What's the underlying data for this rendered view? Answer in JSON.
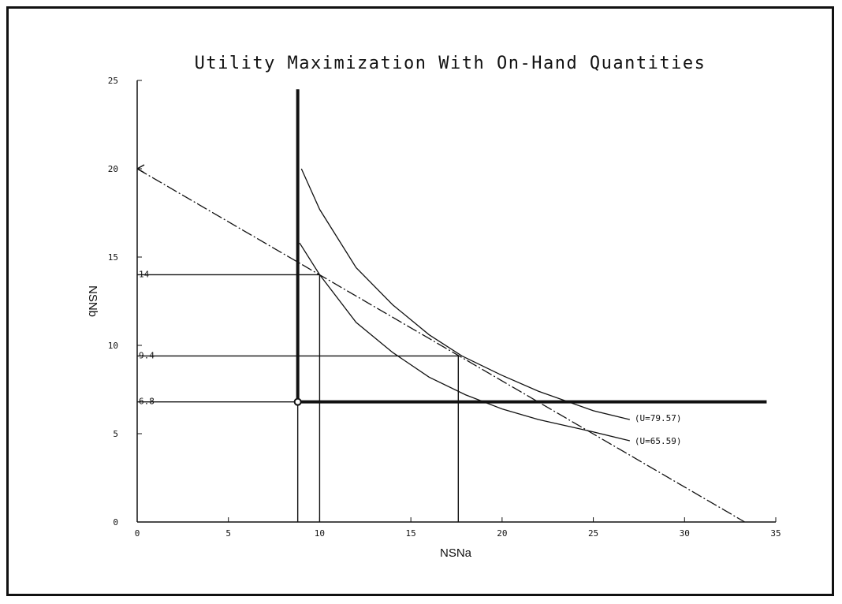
{
  "chart_data": {
    "type": "line",
    "title": "Utility Maximization With On-Hand Quantities",
    "xlabel": "NSNa",
    "ylabel": "NSNb",
    "xlim": [
      0,
      35
    ],
    "ylim": [
      0,
      25
    ],
    "xticks": [
      0,
      5,
      10,
      15,
      20,
      25,
      30,
      35
    ],
    "yticks": [
      0,
      5,
      10,
      15,
      20,
      25
    ],
    "grid": false,
    "colors": {
      "line": "#111111",
      "background": "#ffffff"
    },
    "series": [
      {
        "name": "budget-line",
        "style": "dash-dot",
        "x": [
          0,
          33.3
        ],
        "y": [
          20,
          0
        ]
      },
      {
        "name": "",
        "label": "(U=79.57)",
        "style": "solid",
        "x": [
          9.0,
          10.0,
          12.0,
          14.0,
          16.0,
          17.8,
          20.0,
          22.0,
          25.0,
          27.0
        ],
        "y": [
          20.0,
          17.7,
          14.4,
          12.3,
          10.6,
          9.4,
          8.3,
          7.4,
          6.3,
          5.8
        ]
      },
      {
        "name": "",
        "label": "(U=65.59)",
        "style": "solid",
        "x": [
          8.9,
          10.0,
          12.0,
          14.0,
          16.0,
          18.0,
          20.0,
          22.0,
          25.0,
          27.0
        ],
        "y": [
          15.8,
          14.0,
          11.3,
          9.6,
          8.2,
          7.2,
          6.4,
          5.8,
          5.1,
          4.6
        ]
      }
    ],
    "constraints": {
      "vertical_x": 8.8,
      "vertical_top_y": 24.5,
      "horizontal_y": 6.8,
      "horizontal_right_x": 34.5
    },
    "reference_lines": [
      {
        "x": 10.0,
        "y": 14.0,
        "label": "14"
      },
      {
        "x": 17.6,
        "y": 9.4,
        "label": "9.4"
      },
      {
        "x": 8.8,
        "y": 6.8,
        "label": "6.8"
      }
    ],
    "marked_points": [
      {
        "x": 8.8,
        "y": 6.8
      }
    ],
    "curve_labels": [
      "(U=79.57)",
      "(U=65.59)"
    ]
  }
}
